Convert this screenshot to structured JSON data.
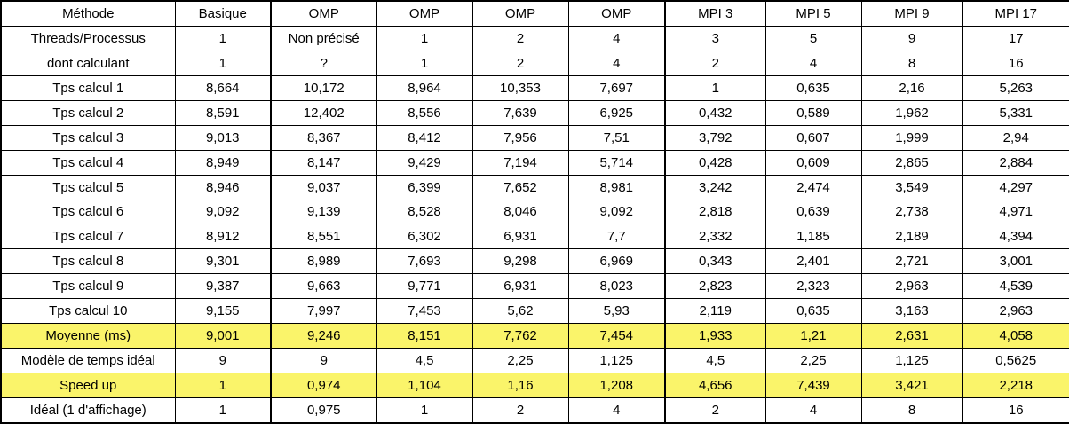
{
  "table": {
    "headers": [
      "Méthode",
      "Basique",
      "OMP",
      "OMP",
      "OMP",
      "OMP",
      "MPI 3",
      "MPI 5",
      "MPI 9",
      "MPI 17"
    ],
    "rows": [
      {
        "label": "Threads/Processus",
        "cells": [
          "1",
          "Non précisé",
          "1",
          "2",
          "4",
          "3",
          "5",
          "9",
          "17"
        ],
        "highlight": false
      },
      {
        "label": "dont calculant",
        "cells": [
          "1",
          "?",
          "1",
          "2",
          "4",
          "2",
          "4",
          "8",
          "16"
        ],
        "highlight": false
      },
      {
        "label": "Tps calcul 1",
        "cells": [
          "8,664",
          "10,172",
          "8,964",
          "10,353",
          "7,697",
          "1",
          "0,635",
          "2,16",
          "5,263"
        ],
        "highlight": false
      },
      {
        "label": "Tps calcul 2",
        "cells": [
          "8,591",
          "12,402",
          "8,556",
          "7,639",
          "6,925",
          "0,432",
          "0,589",
          "1,962",
          "5,331"
        ],
        "highlight": false
      },
      {
        "label": "Tps calcul 3",
        "cells": [
          "9,013",
          "8,367",
          "8,412",
          "7,956",
          "7,51",
          "3,792",
          "0,607",
          "1,999",
          "2,94"
        ],
        "highlight": false
      },
      {
        "label": "Tps calcul 4",
        "cells": [
          "8,949",
          "8,147",
          "9,429",
          "7,194",
          "5,714",
          "0,428",
          "0,609",
          "2,865",
          "2,884"
        ],
        "highlight": false
      },
      {
        "label": "Tps calcul 5",
        "cells": [
          "8,946",
          "9,037",
          "6,399",
          "7,652",
          "8,981",
          "3,242",
          "2,474",
          "3,549",
          "4,297"
        ],
        "highlight": false
      },
      {
        "label": "Tps calcul 6",
        "cells": [
          "9,092",
          "9,139",
          "8,528",
          "8,046",
          "9,092",
          "2,818",
          "0,639",
          "2,738",
          "4,971"
        ],
        "highlight": false
      },
      {
        "label": "Tps calcul 7",
        "cells": [
          "8,912",
          "8,551",
          "6,302",
          "6,931",
          "7,7",
          "2,332",
          "1,185",
          "2,189",
          "4,394"
        ],
        "highlight": false
      },
      {
        "label": "Tps calcul 8",
        "cells": [
          "9,301",
          "8,989",
          "7,693",
          "9,298",
          "6,969",
          "0,343",
          "2,401",
          "2,721",
          "3,001"
        ],
        "highlight": false
      },
      {
        "label": "Tps calcul 9",
        "cells": [
          "9,387",
          "9,663",
          "9,771",
          "6,931",
          "8,023",
          "2,823",
          "2,323",
          "2,963",
          "4,539"
        ],
        "highlight": false
      },
      {
        "label": "Tps calcul 10",
        "cells": [
          "9,155",
          "7,997",
          "7,453",
          "5,62",
          "5,93",
          "2,119",
          "0,635",
          "3,163",
          "2,963"
        ],
        "highlight": false
      },
      {
        "label": "Moyenne (ms)",
        "cells": [
          "9,001",
          "9,246",
          "8,151",
          "7,762",
          "7,454",
          "1,933",
          "1,21",
          "2,631",
          "4,058"
        ],
        "highlight": true
      },
      {
        "label": "Modèle de temps idéal",
        "cells": [
          "9",
          "9",
          "4,5",
          "2,25",
          "1,125",
          "4,5",
          "2,25",
          "1,125",
          "0,5625"
        ],
        "highlight": false
      },
      {
        "label": "Speed up",
        "cells": [
          "1",
          "0,974",
          "1,104",
          "1,16",
          "1,208",
          "4,656",
          "7,439",
          "3,421",
          "2,218"
        ],
        "highlight": true
      },
      {
        "label": "Idéal (1 d'affichage)",
        "cells": [
          "1",
          "0,975",
          "1",
          "2",
          "4",
          "2",
          "4",
          "8",
          "16"
        ],
        "highlight": false
      }
    ]
  },
  "colors": {
    "highlight": "#faf46a",
    "border": "#000000"
  }
}
